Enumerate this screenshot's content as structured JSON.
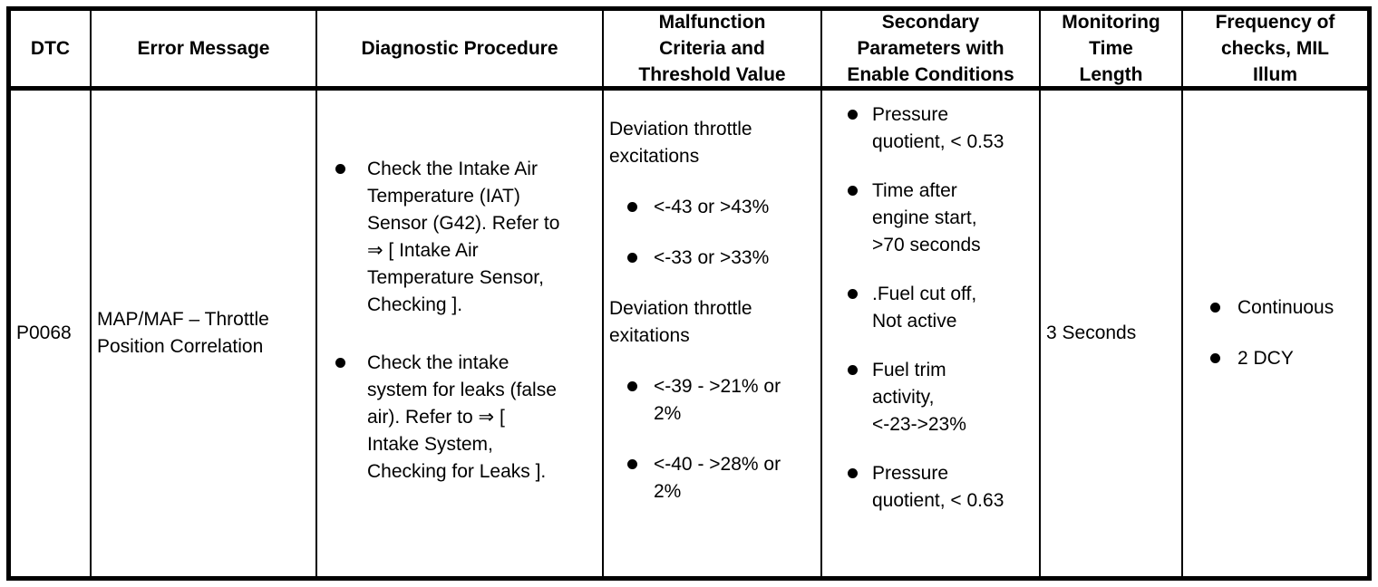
{
  "table": {
    "headers": [
      "DTC",
      "Error Message",
      "Diagnostic Procedure",
      "Malfunction\nCriteria and\nThreshold Value",
      "Secondary\nParameters with\nEnable Conditions",
      "Monitoring\nTime\nLength",
      "Frequency of\nchecks, MIL\nIllum"
    ],
    "row": {
      "dtc": "P0068",
      "error_message": "MAP/MAF – Throttle\nPosition Correlation",
      "diagnostic_procedure": [
        "Check the Intake Air\nTemperature (IAT)\nSensor (G42). Refer to\n⇒ [ Intake Air\nTemperature Sensor,\nChecking ].",
        "Check the intake\nsystem for leaks (false\nair). Refer to ⇒ [\nIntake System,\nChecking for Leaks ]."
      ],
      "malfunction_criteria": {
        "group1": {
          "heading": "Deviation throttle\nexcitations",
          "bullets": [
            "<-43 or >43%",
            "<-33 or >33%"
          ]
        },
        "group2": {
          "heading": "Deviation throttle\nexitations",
          "bullets": [
            "<-39 - >21% or\n2%",
            "<-40 - >28% or\n2%"
          ]
        }
      },
      "secondary_parameters": [
        "Pressure\nquotient, < 0.53",
        "Time after\nengine start,\n>70 seconds",
        ".Fuel cut off,\nNot active",
        "Fuel trim\nactivity,\n<-23->23%",
        "Pressure\nquotient, < 0.63"
      ],
      "monitoring_time_length": "3 Seconds",
      "frequency_of_checks": [
        "Continuous",
        "2 DCY"
      ]
    }
  }
}
